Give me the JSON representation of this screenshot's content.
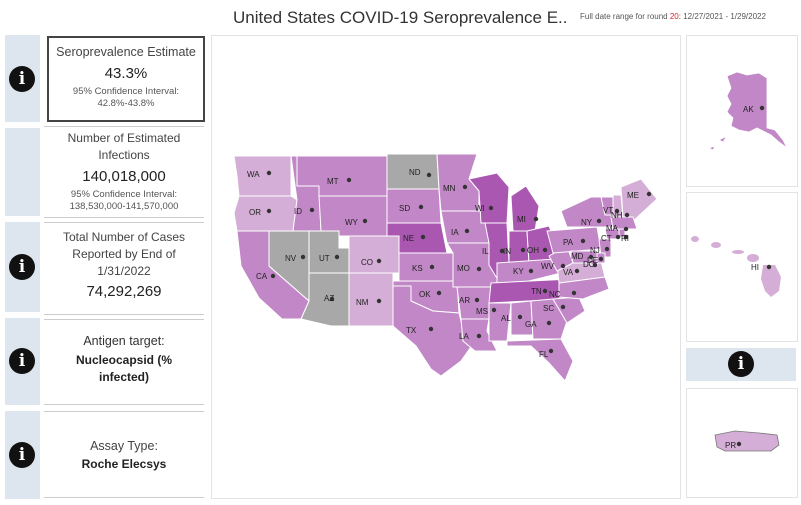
{
  "header": {
    "title": "United States COVID-19 Seroprevalence E..",
    "daterange_prefix": "Full date range for round",
    "round": "20",
    "daterange_dates": "12/27/2021 - 1/29/2022"
  },
  "cards": {
    "estimate": {
      "label": "Seroprevalence Estimate",
      "value": "43.3%",
      "ci_label": "95% Confidence Interval:",
      "ci_value": "42.8%-43.8%"
    },
    "infections": {
      "label_line1": "Number of Estimated",
      "label_line2": "Infections",
      "value": "140,018,000",
      "ci_label": "95% Confidence Interval:",
      "ci_value": "138,530,000-141,570,000"
    },
    "cases": {
      "label_line1": "Total Number of Cases",
      "label_line2": "Reported by End of",
      "label_line3": "1/31/2022",
      "value": "74,292,269"
    },
    "antigen": {
      "label": "Antigen target:",
      "value_line1": "Nucleocapsid (%",
      "value_line2": "infected)"
    },
    "assay": {
      "label": "Assay Type:",
      "value": "Roche Elecsys"
    }
  },
  "icons": {
    "info": "i"
  },
  "colors": {
    "no_data_gray": "#a8a8a8",
    "level_light": "#d4aed6",
    "level_mid": "#c187c6",
    "level_dark": "#a957b0",
    "strip_blue": "#dde6ee"
  },
  "map": {
    "states": [
      {
        "abbr": "WA",
        "level": "light"
      },
      {
        "abbr": "OR",
        "level": "light"
      },
      {
        "abbr": "CA",
        "level": "mid"
      },
      {
        "abbr": "ID",
        "level": "mid"
      },
      {
        "abbr": "NV",
        "level": "nodata"
      },
      {
        "abbr": "UT",
        "level": "nodata"
      },
      {
        "abbr": "AZ",
        "level": "nodata"
      },
      {
        "abbr": "MT",
        "level": "mid"
      },
      {
        "abbr": "WY",
        "level": "mid"
      },
      {
        "abbr": "CO",
        "level": "light"
      },
      {
        "abbr": "NM",
        "level": "light"
      },
      {
        "abbr": "ND",
        "level": "nodata"
      },
      {
        "abbr": "SD",
        "level": "mid"
      },
      {
        "abbr": "NE",
        "level": "dark"
      },
      {
        "abbr": "KS",
        "level": "mid"
      },
      {
        "abbr": "OK",
        "level": "mid"
      },
      {
        "abbr": "TX",
        "level": "mid"
      },
      {
        "abbr": "MN",
        "level": "mid"
      },
      {
        "abbr": "IA",
        "level": "mid"
      },
      {
        "abbr": "MO",
        "level": "mid"
      },
      {
        "abbr": "AR",
        "level": "mid"
      },
      {
        "abbr": "LA",
        "level": "mid"
      },
      {
        "abbr": "WI",
        "level": "dark"
      },
      {
        "abbr": "IL",
        "level": "dark"
      },
      {
        "abbr": "MI",
        "level": "dark"
      },
      {
        "abbr": "IN",
        "level": "dark"
      },
      {
        "abbr": "OH",
        "level": "dark"
      },
      {
        "abbr": "KY",
        "level": "mid"
      },
      {
        "abbr": "TN",
        "level": "dark"
      },
      {
        "abbr": "MS",
        "level": "mid"
      },
      {
        "abbr": "AL",
        "level": "mid"
      },
      {
        "abbr": "GA",
        "level": "mid"
      },
      {
        "abbr": "FL",
        "level": "mid"
      },
      {
        "abbr": "SC",
        "level": "mid"
      },
      {
        "abbr": "NC",
        "level": "mid"
      },
      {
        "abbr": "VA",
        "level": "light"
      },
      {
        "abbr": "WV",
        "level": "mid"
      },
      {
        "abbr": "PA",
        "level": "mid"
      },
      {
        "abbr": "NY",
        "level": "mid"
      },
      {
        "abbr": "VT",
        "level": "mid"
      },
      {
        "abbr": "NH",
        "level": "light"
      },
      {
        "abbr": "ME",
        "level": "light"
      },
      {
        "abbr": "MA",
        "level": "mid"
      },
      {
        "abbr": "CT",
        "level": "mid"
      },
      {
        "abbr": "RI",
        "level": "mid"
      },
      {
        "abbr": "NJ",
        "level": "mid"
      },
      {
        "abbr": "DE",
        "level": "mid"
      },
      {
        "abbr": "MD",
        "level": "mid"
      },
      {
        "abbr": "DC",
        "level": "mid"
      }
    ],
    "insets": {
      "ak": {
        "abbr": "AK",
        "level": "mid"
      },
      "hi": {
        "abbr": "HI",
        "level": "light"
      },
      "pr": {
        "abbr": "PR",
        "level": "light"
      }
    }
  }
}
